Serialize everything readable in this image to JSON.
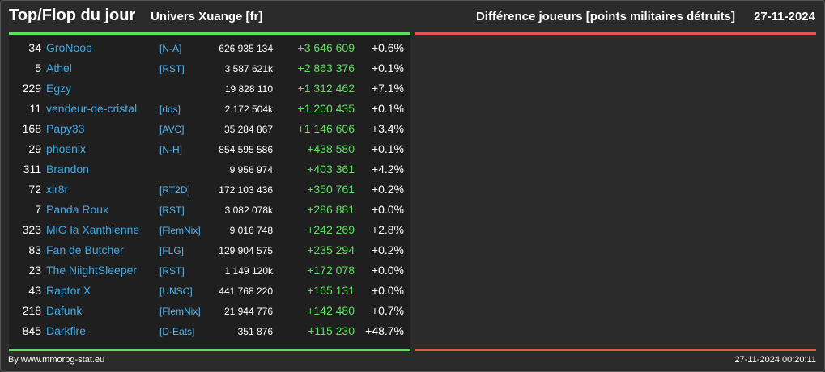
{
  "header": {
    "title": "Top/Flop du jour",
    "universe": "Univers Xuange [fr]",
    "category": "Différence joueurs [points militaires détruits]",
    "date": "27-11-2024"
  },
  "colors": {
    "background": "#2b2b2b",
    "panel": "#1f1f1f",
    "top_accent": "#5ee05e",
    "flop_accent": "#e0574f",
    "link": "#3da9e8",
    "positive": "#5ee05e"
  },
  "top_list": [
    {
      "rank": "34",
      "name": "GroNoob",
      "tag": "[N-A]",
      "points": "626 935 134",
      "diff": "+3 646 609",
      "pct": "+0.6%"
    },
    {
      "rank": "5",
      "name": "Athel",
      "tag": "[RST]",
      "points": "3 587 621k",
      "diff": "+2 863 376",
      "pct": "+0.1%"
    },
    {
      "rank": "229",
      "name": "Egzy",
      "tag": "",
      "points": "19 828 110",
      "diff": "+1 312 462",
      "pct": "+7.1%"
    },
    {
      "rank": "11",
      "name": "vendeur-de-cristal",
      "tag": "[dds]",
      "points": "2 172 504k",
      "diff": "+1 200 435",
      "pct": "+0.1%"
    },
    {
      "rank": "168",
      "name": "Papy33",
      "tag": "[AVC]",
      "points": "35 284 867",
      "diff": "+1 146 606",
      "pct": "+3.4%"
    },
    {
      "rank": "29",
      "name": "phoenix",
      "tag": "[N-H]",
      "points": "854 595 586",
      "diff": "+438 580",
      "pct": "+0.1%"
    },
    {
      "rank": "311",
      "name": "Brandon",
      "tag": "",
      "points": "9 956 974",
      "diff": "+403 361",
      "pct": "+4.2%"
    },
    {
      "rank": "72",
      "name": "xlr8r",
      "tag": "[RT2D]",
      "points": "172 103 436",
      "diff": "+350 761",
      "pct": "+0.2%"
    },
    {
      "rank": "7",
      "name": "Panda Roux",
      "tag": "[RST]",
      "points": "3 082 078k",
      "diff": "+286 881",
      "pct": "+0.0%"
    },
    {
      "rank": "323",
      "name": "MiG la Xanthienne",
      "tag": "[FlemNix]",
      "points": "9 016 748",
      "diff": "+242 269",
      "pct": "+2.8%"
    },
    {
      "rank": "83",
      "name": "Fan de Butcher",
      "tag": "[FLG]",
      "points": "129 904 575",
      "diff": "+235 294",
      "pct": "+0.2%"
    },
    {
      "rank": "23",
      "name": "The NiightSleeper",
      "tag": "[RST]",
      "points": "1 149 120k",
      "diff": "+172 078",
      "pct": "+0.0%"
    },
    {
      "rank": "43",
      "name": "Raptor X",
      "tag": "[UNSC]",
      "points": "441 768 220",
      "diff": "+165 131",
      "pct": "+0.0%"
    },
    {
      "rank": "218",
      "name": "Dafunk",
      "tag": "[FlemNix]",
      "points": "21 944 776",
      "diff": "+142 480",
      "pct": "+0.7%"
    },
    {
      "rank": "845",
      "name": "Darkfire",
      "tag": "[D-Eats]",
      "points": "351 876",
      "diff": "+115 230",
      "pct": "+48.7%"
    }
  ],
  "footer": {
    "source": "By www.mmorpg-stat.eu",
    "timestamp": "27-11-2024 00:20:11"
  }
}
